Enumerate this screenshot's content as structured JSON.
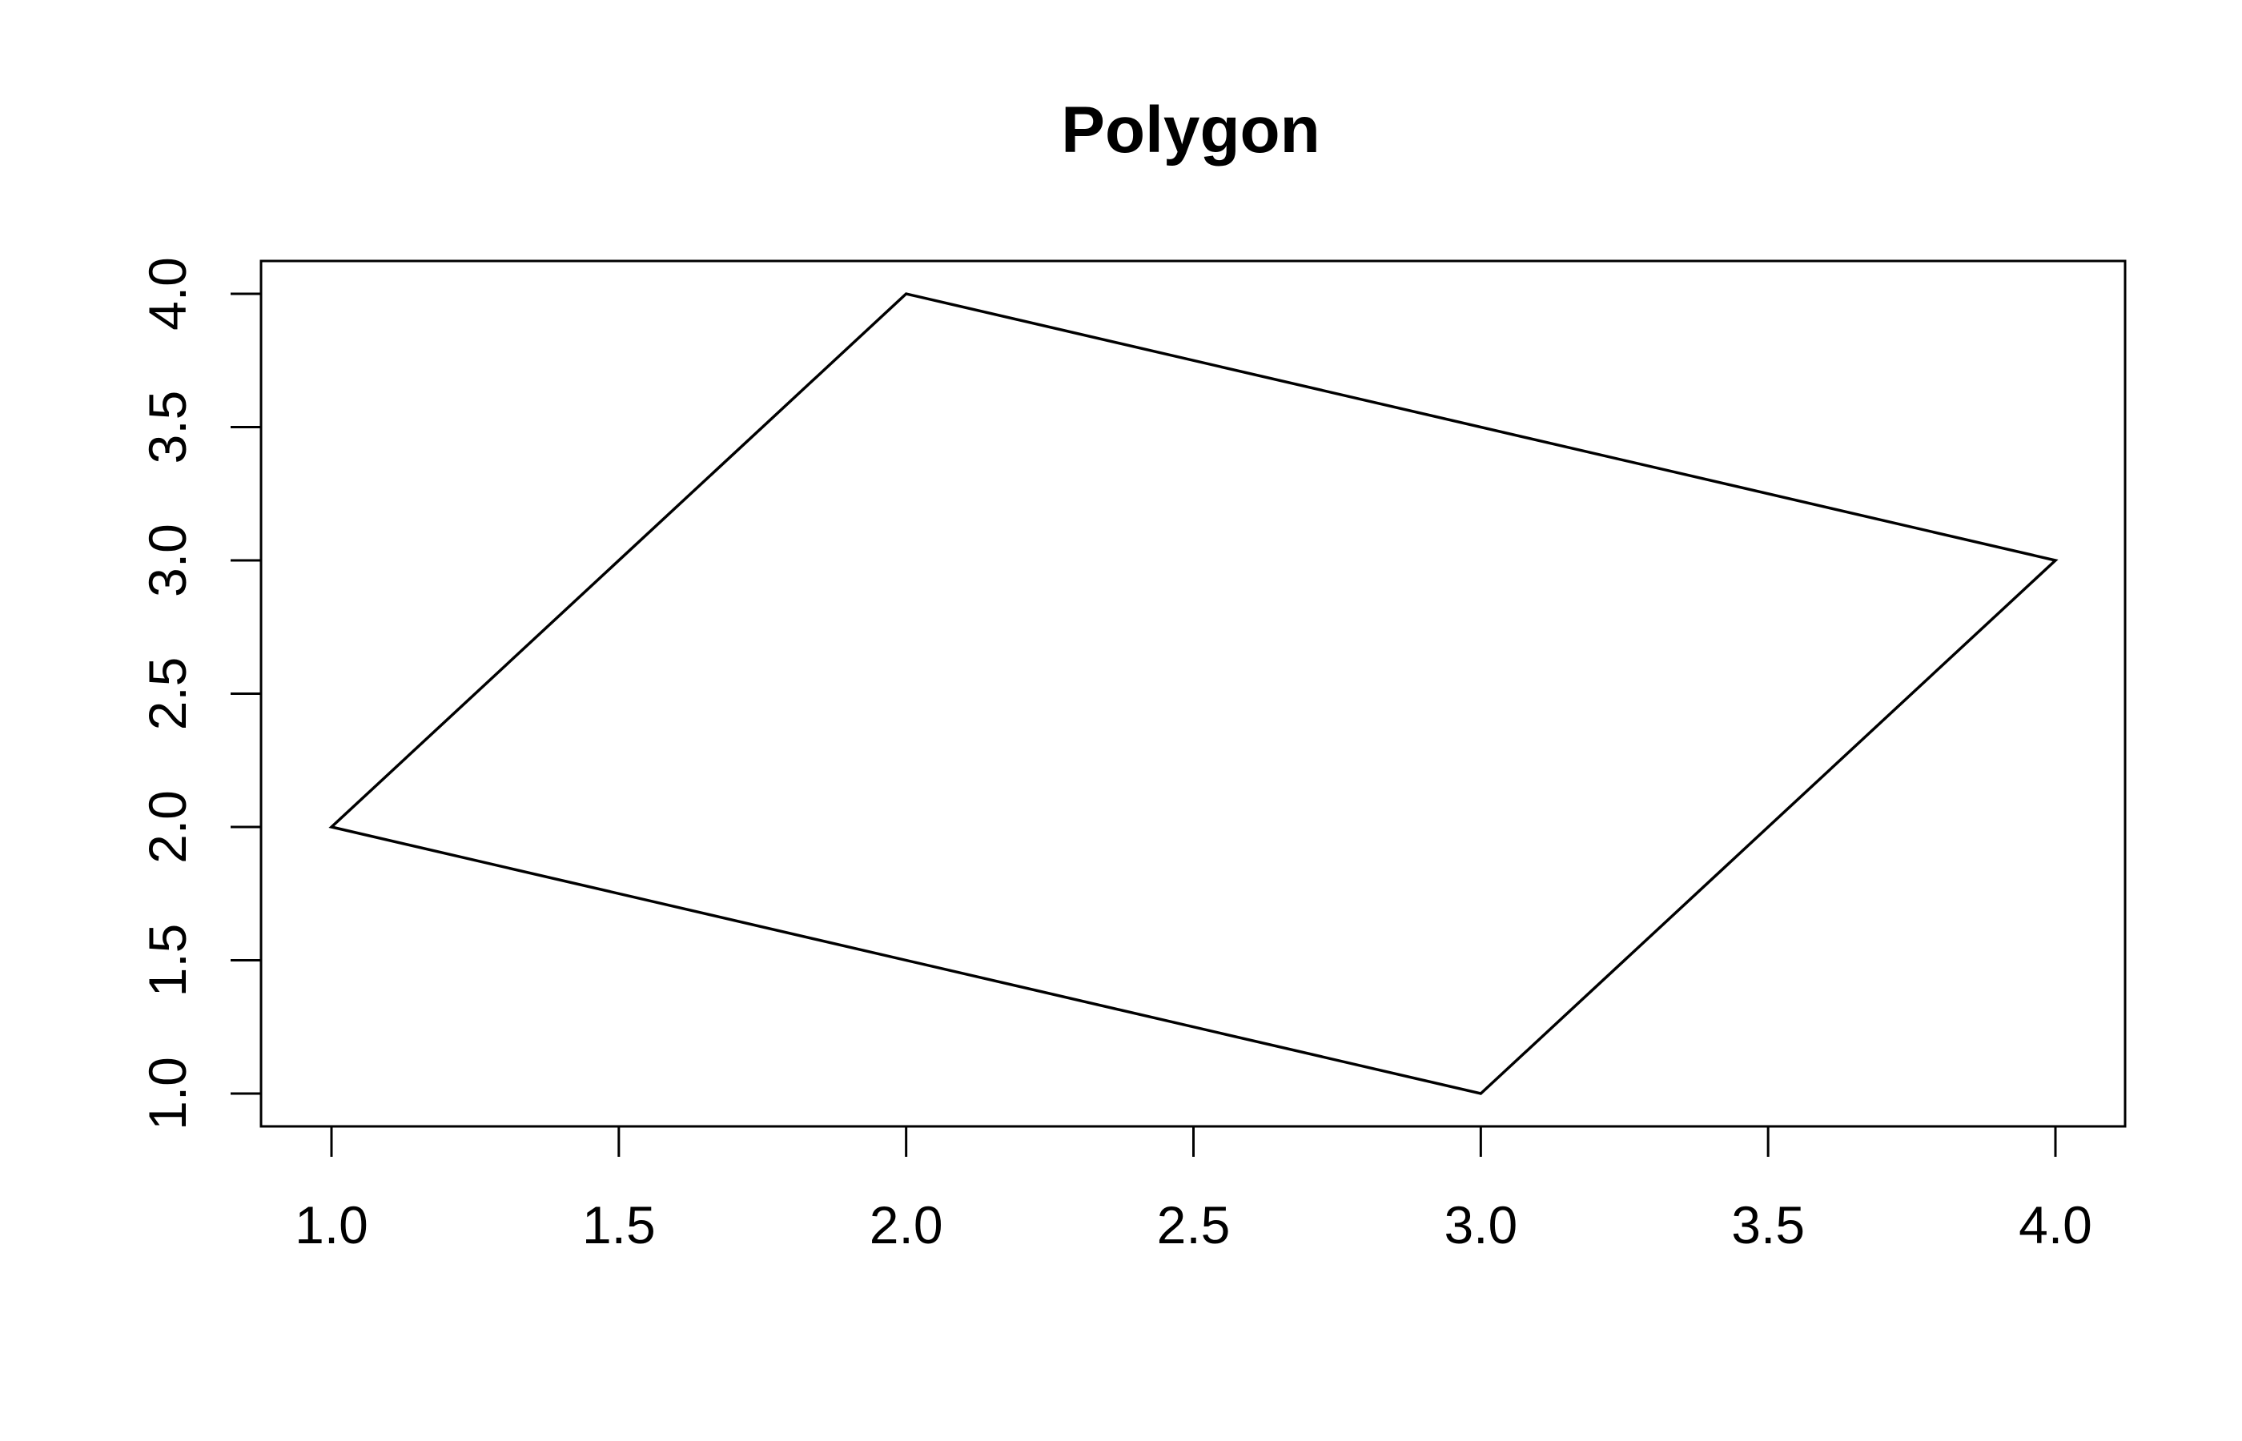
{
  "chart_data": {
    "type": "polygon",
    "title": "Polygon",
    "xlabel": "",
    "ylabel": "",
    "xlim": [
      1.0,
      4.0
    ],
    "ylim": [
      1.0,
      4.0
    ],
    "x_ticks": [
      "1.0",
      "1.5",
      "2.0",
      "2.5",
      "3.0",
      "3.5",
      "4.0"
    ],
    "y_ticks": [
      "1.0",
      "1.5",
      "2.0",
      "2.5",
      "3.0",
      "3.5",
      "4.0"
    ],
    "x_tick_values": [
      1.0,
      1.5,
      2.0,
      2.5,
      3.0,
      3.5,
      4.0
    ],
    "y_tick_values": [
      1.0,
      1.5,
      2.0,
      2.5,
      3.0,
      3.5,
      4.0
    ],
    "series": [
      {
        "points": [
          {
            "x": 1,
            "y": 2
          },
          {
            "x": 2,
            "y": 4
          },
          {
            "x": 4,
            "y": 3
          },
          {
            "x": 3,
            "y": 1
          }
        ],
        "fill": "none",
        "stroke_color": "#000000"
      }
    ],
    "grid": false,
    "legend": "none"
  }
}
